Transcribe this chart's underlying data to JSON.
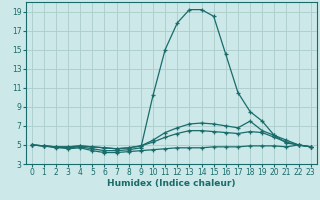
{
  "xlabel": "Humidex (Indice chaleur)",
  "background_color": "#cce8e8",
  "grid_color": "#b0d0d0",
  "line_color": "#1a6b6b",
  "xlim": [
    -0.5,
    23.5
  ],
  "ylim": [
    3,
    20
  ],
  "xticks": [
    0,
    1,
    2,
    3,
    4,
    5,
    6,
    7,
    8,
    9,
    10,
    11,
    12,
    13,
    14,
    15,
    16,
    17,
    18,
    19,
    20,
    21,
    22,
    23
  ],
  "yticks": [
    3,
    5,
    7,
    9,
    11,
    13,
    15,
    17,
    19
  ],
  "series": [
    {
      "x": [
        0,
        1,
        2,
        3,
        4,
        5,
        6,
        7,
        8,
        9,
        10,
        11,
        12,
        13,
        14,
        15,
        16,
        17,
        18,
        19,
        20,
        21,
        22,
        23
      ],
      "y": [
        5.0,
        4.9,
        4.7,
        4.7,
        4.8,
        4.6,
        4.4,
        4.4,
        4.5,
        4.7,
        10.2,
        15.0,
        17.8,
        19.2,
        19.2,
        18.5,
        14.5,
        10.5,
        8.5,
        7.5,
        6.0,
        5.2,
        5.0,
        4.8
      ]
    },
    {
      "x": [
        0,
        1,
        2,
        3,
        4,
        5,
        6,
        7,
        8,
        9,
        10,
        11,
        12,
        13,
        14,
        15,
        16,
        17,
        18,
        19,
        20,
        21,
        22,
        23
      ],
      "y": [
        5.0,
        4.9,
        4.8,
        4.8,
        4.9,
        4.8,
        4.7,
        4.6,
        4.7,
        4.9,
        5.5,
        6.3,
        6.8,
        7.2,
        7.3,
        7.2,
        7.0,
        6.8,
        7.5,
        6.5,
        6.0,
        5.5,
        5.0,
        4.8
      ]
    },
    {
      "x": [
        0,
        1,
        2,
        3,
        4,
        5,
        6,
        7,
        8,
        9,
        10,
        11,
        12,
        13,
        14,
        15,
        16,
        17,
        18,
        19,
        20,
        21,
        22,
        23
      ],
      "y": [
        5.0,
        4.9,
        4.8,
        4.8,
        4.9,
        4.8,
        4.7,
        4.6,
        4.7,
        4.9,
        5.3,
        5.8,
        6.2,
        6.5,
        6.5,
        6.4,
        6.3,
        6.2,
        6.4,
        6.3,
        5.8,
        5.3,
        5.0,
        4.8
      ]
    },
    {
      "x": [
        0,
        1,
        2,
        3,
        4,
        5,
        6,
        7,
        8,
        9,
        10,
        11,
        12,
        13,
        14,
        15,
        16,
        17,
        18,
        19,
        20,
        21,
        22,
        23
      ],
      "y": [
        5.0,
        4.9,
        4.8,
        4.6,
        4.7,
        4.4,
        4.2,
        4.2,
        4.3,
        4.4,
        4.5,
        4.6,
        4.7,
        4.7,
        4.7,
        4.8,
        4.8,
        4.8,
        4.9,
        4.9,
        4.9,
        4.8,
        5.0,
        4.8
      ]
    }
  ]
}
